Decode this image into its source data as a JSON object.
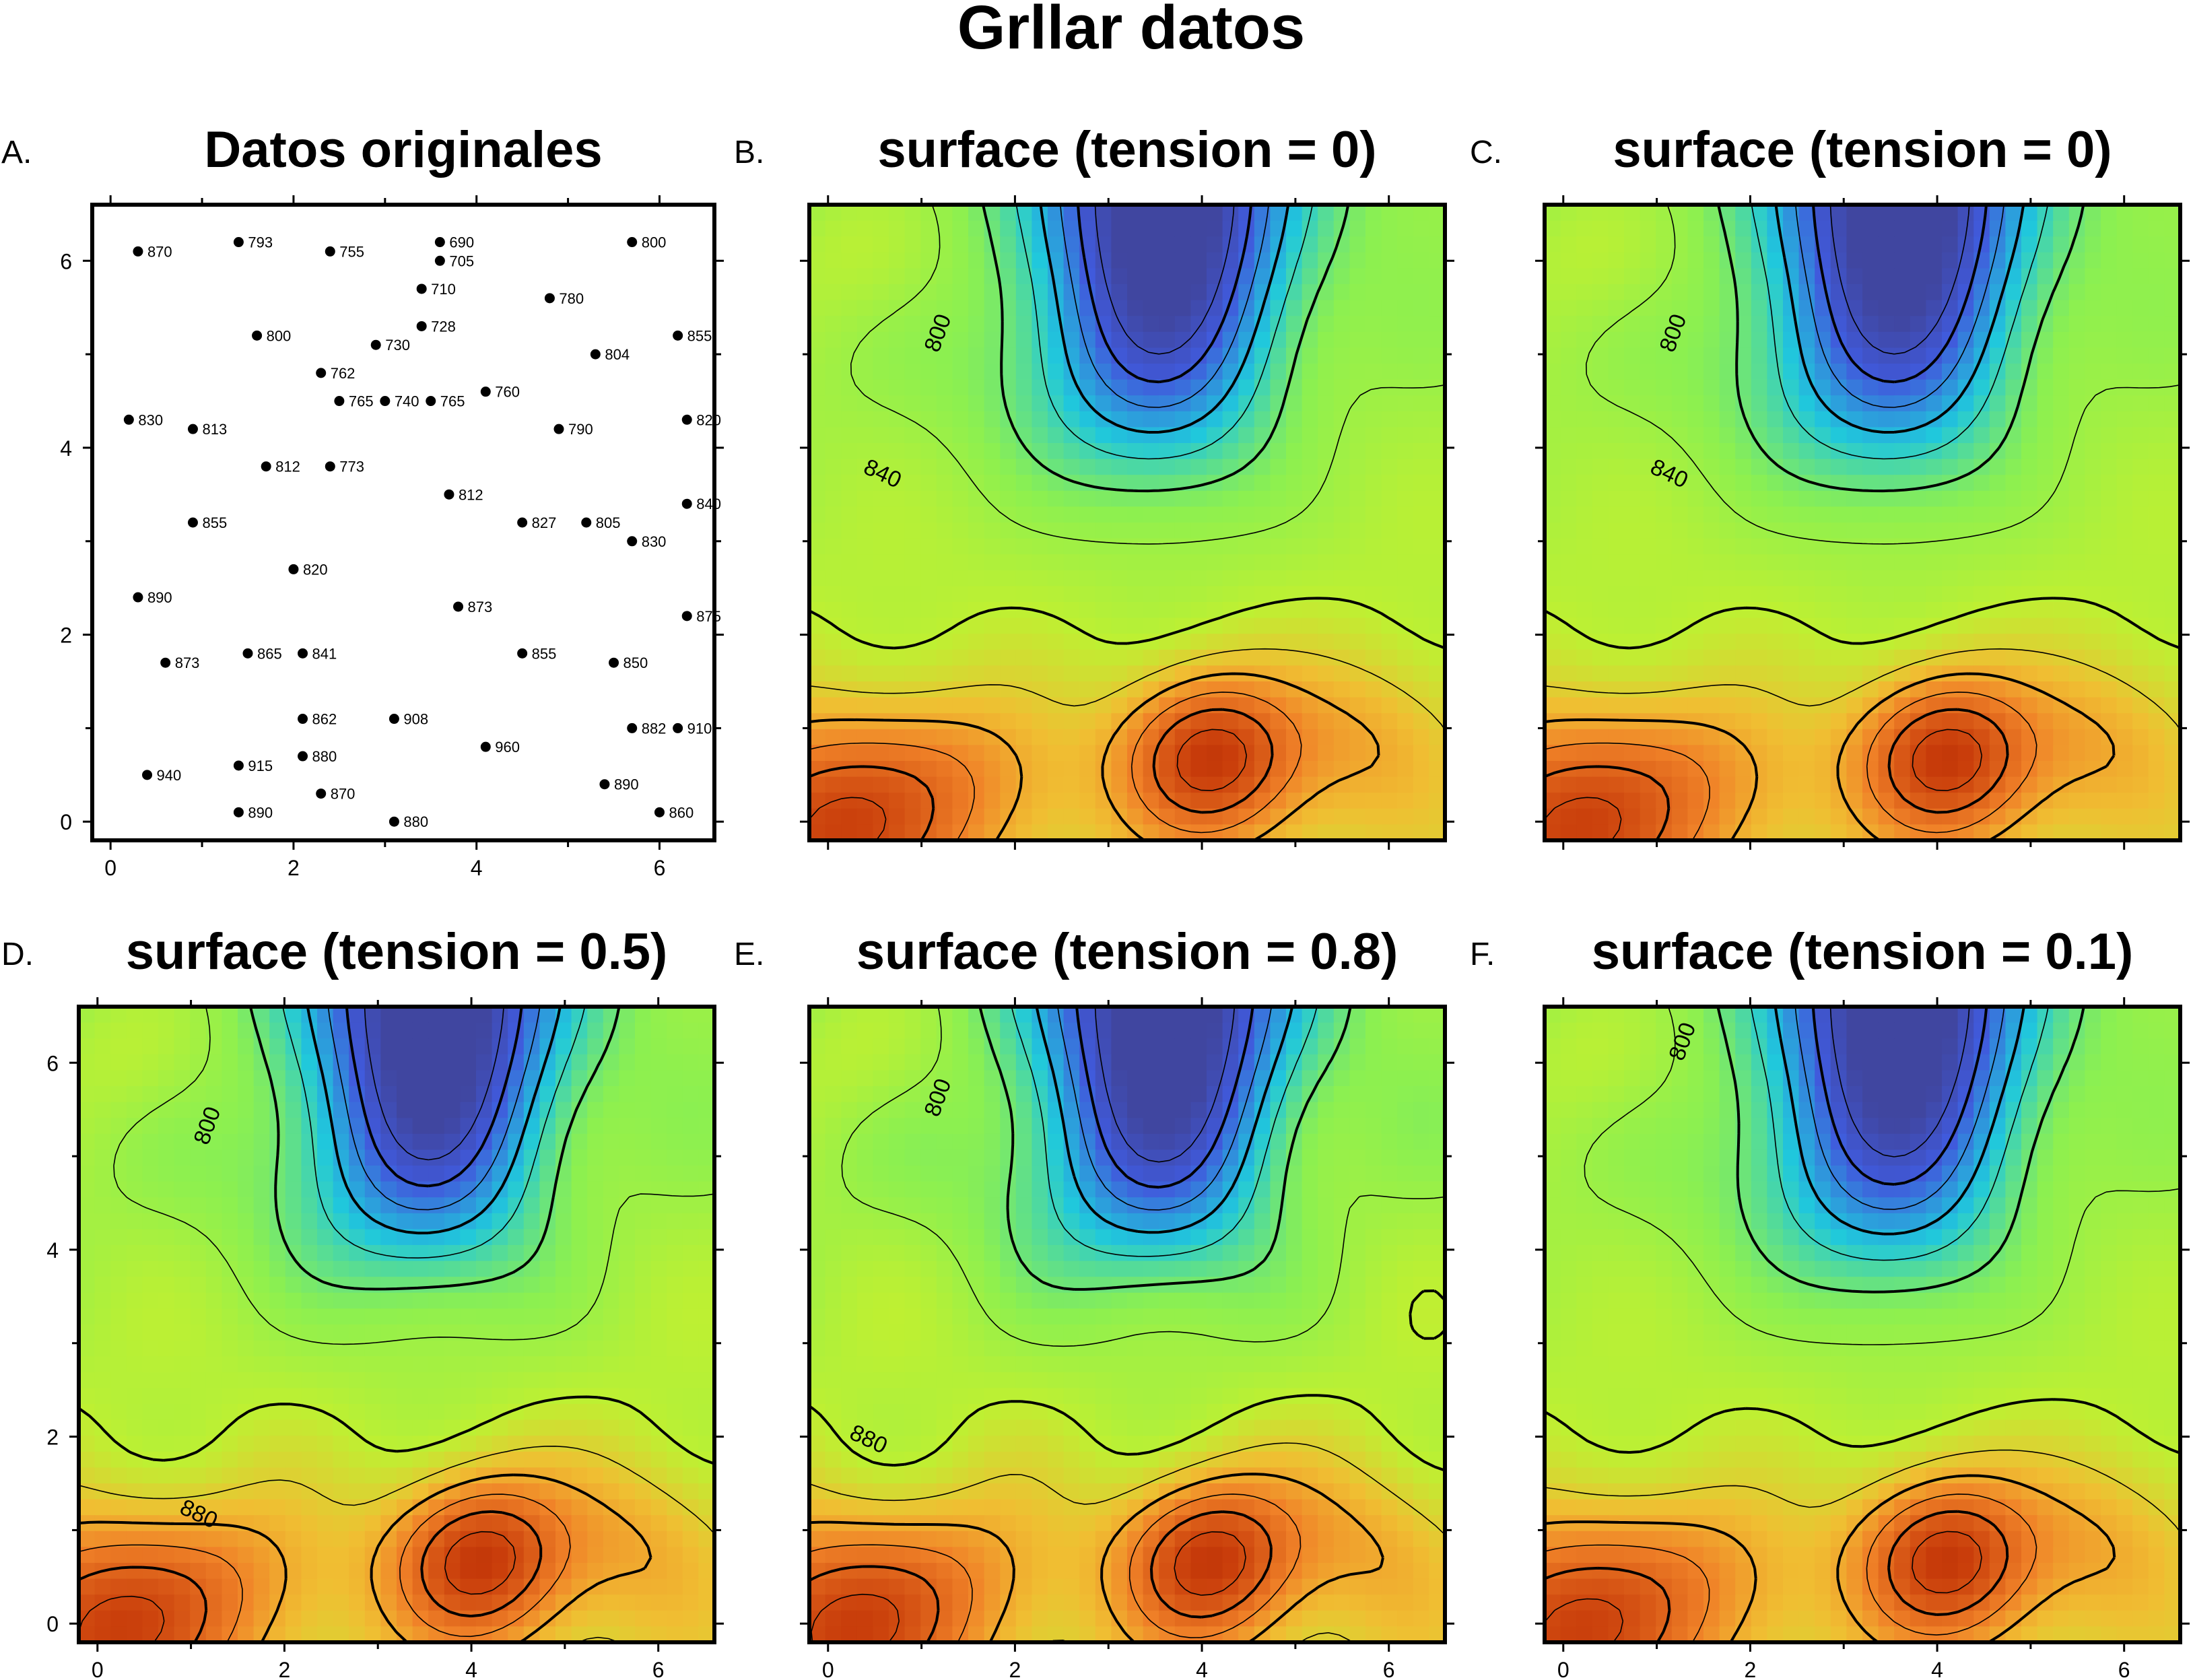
{
  "title": "Grllar datos",
  "chart_data": [
    {
      "type": "scatter",
      "letter": "A.",
      "title": "Datos originales",
      "xlim": [
        -0.2,
        6.6
      ],
      "ylim": [
        -0.2,
        6.6
      ],
      "xticks": [
        0,
        2,
        4,
        6
      ],
      "yticks": [
        0,
        2,
        4,
        6
      ],
      "points": [
        {
          "x": 0.3,
          "y": 6.1,
          "value": "870"
        },
        {
          "x": 1.4,
          "y": 6.2,
          "value": "793"
        },
        {
          "x": 2.4,
          "y": 6.1,
          "value": "755"
        },
        {
          "x": 3.6,
          "y": 6.2,
          "value": "690"
        },
        {
          "x": 3.6,
          "y": 6.0,
          "value": "705"
        },
        {
          "x": 5.7,
          "y": 6.2,
          "value": "800"
        },
        {
          "x": 3.4,
          "y": 5.7,
          "value": "710"
        },
        {
          "x": 4.8,
          "y": 5.6,
          "value": "780"
        },
        {
          "x": 1.6,
          "y": 5.2,
          "value": "800"
        },
        {
          "x": 2.9,
          "y": 5.1,
          "value": "730"
        },
        {
          "x": 3.4,
          "y": 5.3,
          "value": "728"
        },
        {
          "x": 5.3,
          "y": 5.0,
          "value": "804"
        },
        {
          "x": 6.2,
          "y": 5.2,
          "value": "855"
        },
        {
          "x": 2.3,
          "y": 4.8,
          "value": "762"
        },
        {
          "x": 2.5,
          "y": 4.5,
          "value": "765"
        },
        {
          "x": 3.0,
          "y": 4.5,
          "value": "740"
        },
        {
          "x": 3.5,
          "y": 4.5,
          "value": "765"
        },
        {
          "x": 4.1,
          "y": 4.6,
          "value": "760"
        },
        {
          "x": 0.2,
          "y": 4.3,
          "value": "830"
        },
        {
          "x": 0.9,
          "y": 4.2,
          "value": "813"
        },
        {
          "x": 4.9,
          "y": 4.2,
          "value": "790"
        },
        {
          "x": 6.3,
          "y": 4.3,
          "value": "820"
        },
        {
          "x": 1.7,
          "y": 3.8,
          "value": "812"
        },
        {
          "x": 2.4,
          "y": 3.8,
          "value": "773"
        },
        {
          "x": 3.7,
          "y": 3.5,
          "value": "812"
        },
        {
          "x": 0.9,
          "y": 3.2,
          "value": "855"
        },
        {
          "x": 4.5,
          "y": 3.2,
          "value": "827"
        },
        {
          "x": 5.2,
          "y": 3.2,
          "value": "805"
        },
        {
          "x": 5.7,
          "y": 3.0,
          "value": "830"
        },
        {
          "x": 6.3,
          "y": 3.4,
          "value": "840"
        },
        {
          "x": 2.0,
          "y": 2.7,
          "value": "820"
        },
        {
          "x": 0.3,
          "y": 2.4,
          "value": "890"
        },
        {
          "x": 3.8,
          "y": 2.3,
          "value": "873"
        },
        {
          "x": 6.3,
          "y": 2.2,
          "value": "875"
        },
        {
          "x": 0.6,
          "y": 1.7,
          "value": "873"
        },
        {
          "x": 1.5,
          "y": 1.8,
          "value": "865"
        },
        {
          "x": 2.1,
          "y": 1.8,
          "value": "841"
        },
        {
          "x": 4.5,
          "y": 1.8,
          "value": "855"
        },
        {
          "x": 5.5,
          "y": 1.7,
          "value": "850"
        },
        {
          "x": 2.1,
          "y": 1.1,
          "value": "862"
        },
        {
          "x": 3.1,
          "y": 1.1,
          "value": "908"
        },
        {
          "x": 5.7,
          "y": 1.0,
          "value": "882"
        },
        {
          "x": 6.2,
          "y": 1.0,
          "value": "910"
        },
        {
          "x": 4.1,
          "y": 0.8,
          "value": "960"
        },
        {
          "x": 2.1,
          "y": 0.7,
          "value": "880"
        },
        {
          "x": 1.4,
          "y": 0.6,
          "value": "915"
        },
        {
          "x": 0.4,
          "y": 0.5,
          "value": "940"
        },
        {
          "x": 2.3,
          "y": 0.3,
          "value": "870"
        },
        {
          "x": 5.4,
          "y": 0.4,
          "value": "890"
        },
        {
          "x": 1.4,
          "y": 0.1,
          "value": "890"
        },
        {
          "x": 3.1,
          "y": 0.0,
          "value": "880"
        },
        {
          "x": 6.0,
          "y": 0.1,
          "value": "860"
        }
      ]
    },
    {
      "type": "heatmap",
      "letter": "B.",
      "title": "surface (tension = 0)",
      "tension": 0,
      "xlim": [
        -0.2,
        6.6
      ],
      "ylim": [
        -0.2,
        6.6
      ],
      "xticks": [
        0,
        2,
        4,
        6
      ],
      "yticks": [
        0,
        2,
        4,
        6
      ],
      "contour_labels": [
        "800",
        "840"
      ]
    },
    {
      "type": "heatmap",
      "letter": "C.",
      "title": "surface (tension = 0)",
      "tension": 0,
      "xlim": [
        -0.2,
        6.6
      ],
      "ylim": [
        -0.2,
        6.6
      ],
      "xticks": [
        0,
        2,
        4,
        6
      ],
      "yticks": [
        0,
        2,
        4,
        6
      ],
      "contour_labels": [
        "800",
        "840"
      ]
    },
    {
      "type": "heatmap",
      "letter": "D.",
      "title": "surface (tension = 0.5)",
      "tension": 0.5,
      "xlim": [
        -0.2,
        6.6
      ],
      "ylim": [
        -0.2,
        6.6
      ],
      "xticks": [
        0,
        2,
        4,
        6
      ],
      "yticks": [
        0,
        2,
        4,
        6
      ],
      "contour_labels": [
        "800",
        "880"
      ]
    },
    {
      "type": "heatmap",
      "letter": "E.",
      "title": "surface (tension = 0.8)",
      "tension": 0.8,
      "xlim": [
        -0.2,
        6.6
      ],
      "ylim": [
        -0.2,
        6.6
      ],
      "xticks": [
        0,
        2,
        4,
        6
      ],
      "yticks": [
        0,
        2,
        4,
        6
      ],
      "contour_labels": [
        "800",
        "880"
      ]
    },
    {
      "type": "heatmap",
      "letter": "F.",
      "title": "surface (tension = 0.1)",
      "tension": 0.1,
      "xlim": [
        -0.2,
        6.6
      ],
      "ylim": [
        -0.2,
        6.6
      ],
      "xticks": [
        0,
        2,
        4,
        6
      ],
      "yticks": [
        0,
        2,
        4,
        6
      ],
      "contour_labels": [
        "800"
      ]
    }
  ],
  "colors": {
    "low": "#4050c8",
    "mid_low": "#20d0d8",
    "mid": "#a8f040",
    "mid_high": "#f0c030",
    "high": "#c03000"
  }
}
